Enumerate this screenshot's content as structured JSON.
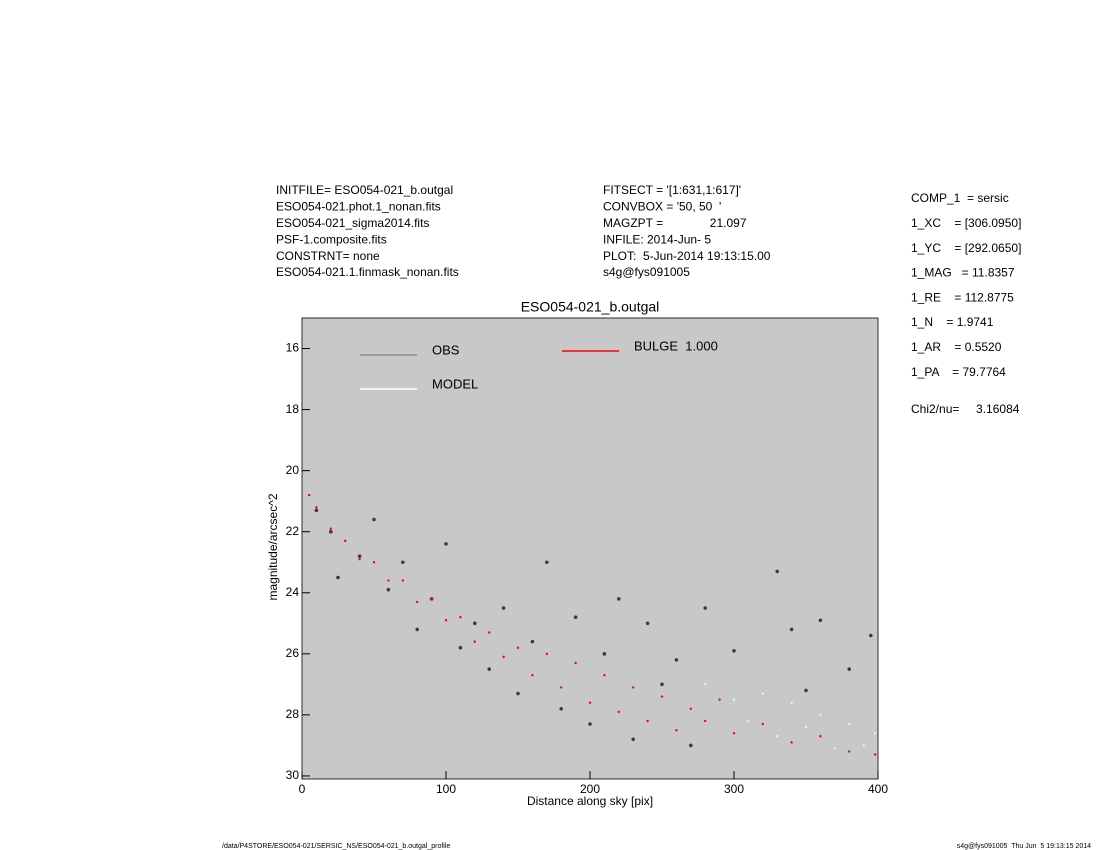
{
  "chart_data": {
    "type": "scatter",
    "title": "ESO054-021_b.outgal",
    "x_label": "Distance along sky [pix]",
    "y_label": "magnitude/arcsec^2",
    "xlim": [
      0,
      400
    ],
    "ylim": [
      30.1,
      15
    ],
    "xticks": [
      0,
      100,
      200,
      300,
      400
    ],
    "yticks": [
      16,
      18,
      20,
      22,
      24,
      26,
      28,
      30
    ],
    "background": "#c8c8c8",
    "header_left": [
      "INITFILE= ESO054-021_b.outgal",
      "ESO054-021.phot.1_nonan.fits",
      "ESO054-021_sigma2014.fits",
      "PSF-1.composite.fits",
      "CONSTRNT= none",
      "ESO054-021.1.finmask_nonan.fits"
    ],
    "header_middle": [
      "FITSECT = '[1:631,1:617]'",
      "CONVBOX = '50, 50  '",
      "MAGZPT =              21.097",
      "INFILE: 2014-Jun- 5",
      "PLOT:  5-Jun-2014 19:13:15.00",
      "s4g@fys091005"
    ],
    "parameters": [
      "COMP_1  = sersic",
      "1_XC    = [306.0950]",
      "1_YC    = [292.0650]",
      "1_MAG   = 11.8357",
      "1_RE    = 112.8775",
      "1_N    = 1.9741",
      "1_AR    = 0.5520",
      "1_PA    = 79.7764"
    ],
    "chi2": "Chi2/nu=     3.16084",
    "footer_left": "/data/P4STORE/ESO054-021/SERSIC_NS/ESO054-021_b.outgal_profile",
    "footer_right": "s4g@fys091005  Thu Jun  5 19:13:15 2014",
    "series": [
      {
        "name": "OBS",
        "color": "#8c8c8c",
        "marker_color": "#3c3c3c",
        "x": [
          10,
          20,
          25,
          40,
          50,
          60,
          70,
          80,
          90,
          100,
          110,
          120,
          130,
          140,
          150,
          160,
          170,
          180,
          190,
          200,
          210,
          220,
          230,
          240,
          250,
          260,
          270,
          280,
          300,
          330,
          340,
          350,
          360,
          380,
          395
        ],
        "values": [
          21.3,
          22.0,
          23.5,
          22.8,
          21.6,
          23.9,
          23.0,
          25.2,
          24.2,
          22.4,
          25.8,
          25.0,
          26.5,
          24.5,
          27.3,
          25.6,
          23.0,
          27.8,
          24.8,
          28.3,
          26.0,
          24.2,
          28.8,
          25.0,
          27.0,
          26.2,
          29.0,
          24.5,
          25.9,
          23.3,
          25.2,
          27.2,
          24.9,
          26.5,
          25.4
        ]
      },
      {
        "name": "MODEL",
        "color": "#ffffff",
        "marker_color": "#eeeeee",
        "x": [
          280,
          300,
          310,
          320,
          330,
          340,
          350,
          360,
          370,
          380,
          390,
          398
        ],
        "values": [
          27.0,
          27.5,
          28.2,
          27.3,
          28.7,
          27.6,
          28.4,
          28.0,
          29.1,
          28.3,
          29.0,
          28.6
        ]
      },
      {
        "name": "BULGE  1.000",
        "color": "#ff0000",
        "marker_color": "#ff0000",
        "x": [
          5,
          10,
          20,
          30,
          40,
          50,
          60,
          70,
          80,
          90,
          100,
          110,
          120,
          130,
          140,
          150,
          160,
          170,
          180,
          190,
          200,
          210,
          220,
          230,
          240,
          250,
          260,
          270,
          280,
          290,
          300,
          320,
          340,
          360,
          380,
          398
        ],
        "values": [
          20.8,
          21.2,
          21.9,
          22.3,
          22.9,
          23.0,
          23.6,
          23.6,
          24.3,
          24.2,
          24.9,
          24.8,
          25.6,
          25.3,
          26.1,
          25.8,
          26.7,
          26.0,
          27.1,
          26.3,
          27.6,
          26.7,
          27.9,
          27.1,
          28.2,
          27.4,
          28.5,
          27.8,
          28.2,
          27.5,
          28.6,
          28.3,
          28.9,
          28.7,
          29.2,
          29.3
        ]
      }
    ]
  }
}
